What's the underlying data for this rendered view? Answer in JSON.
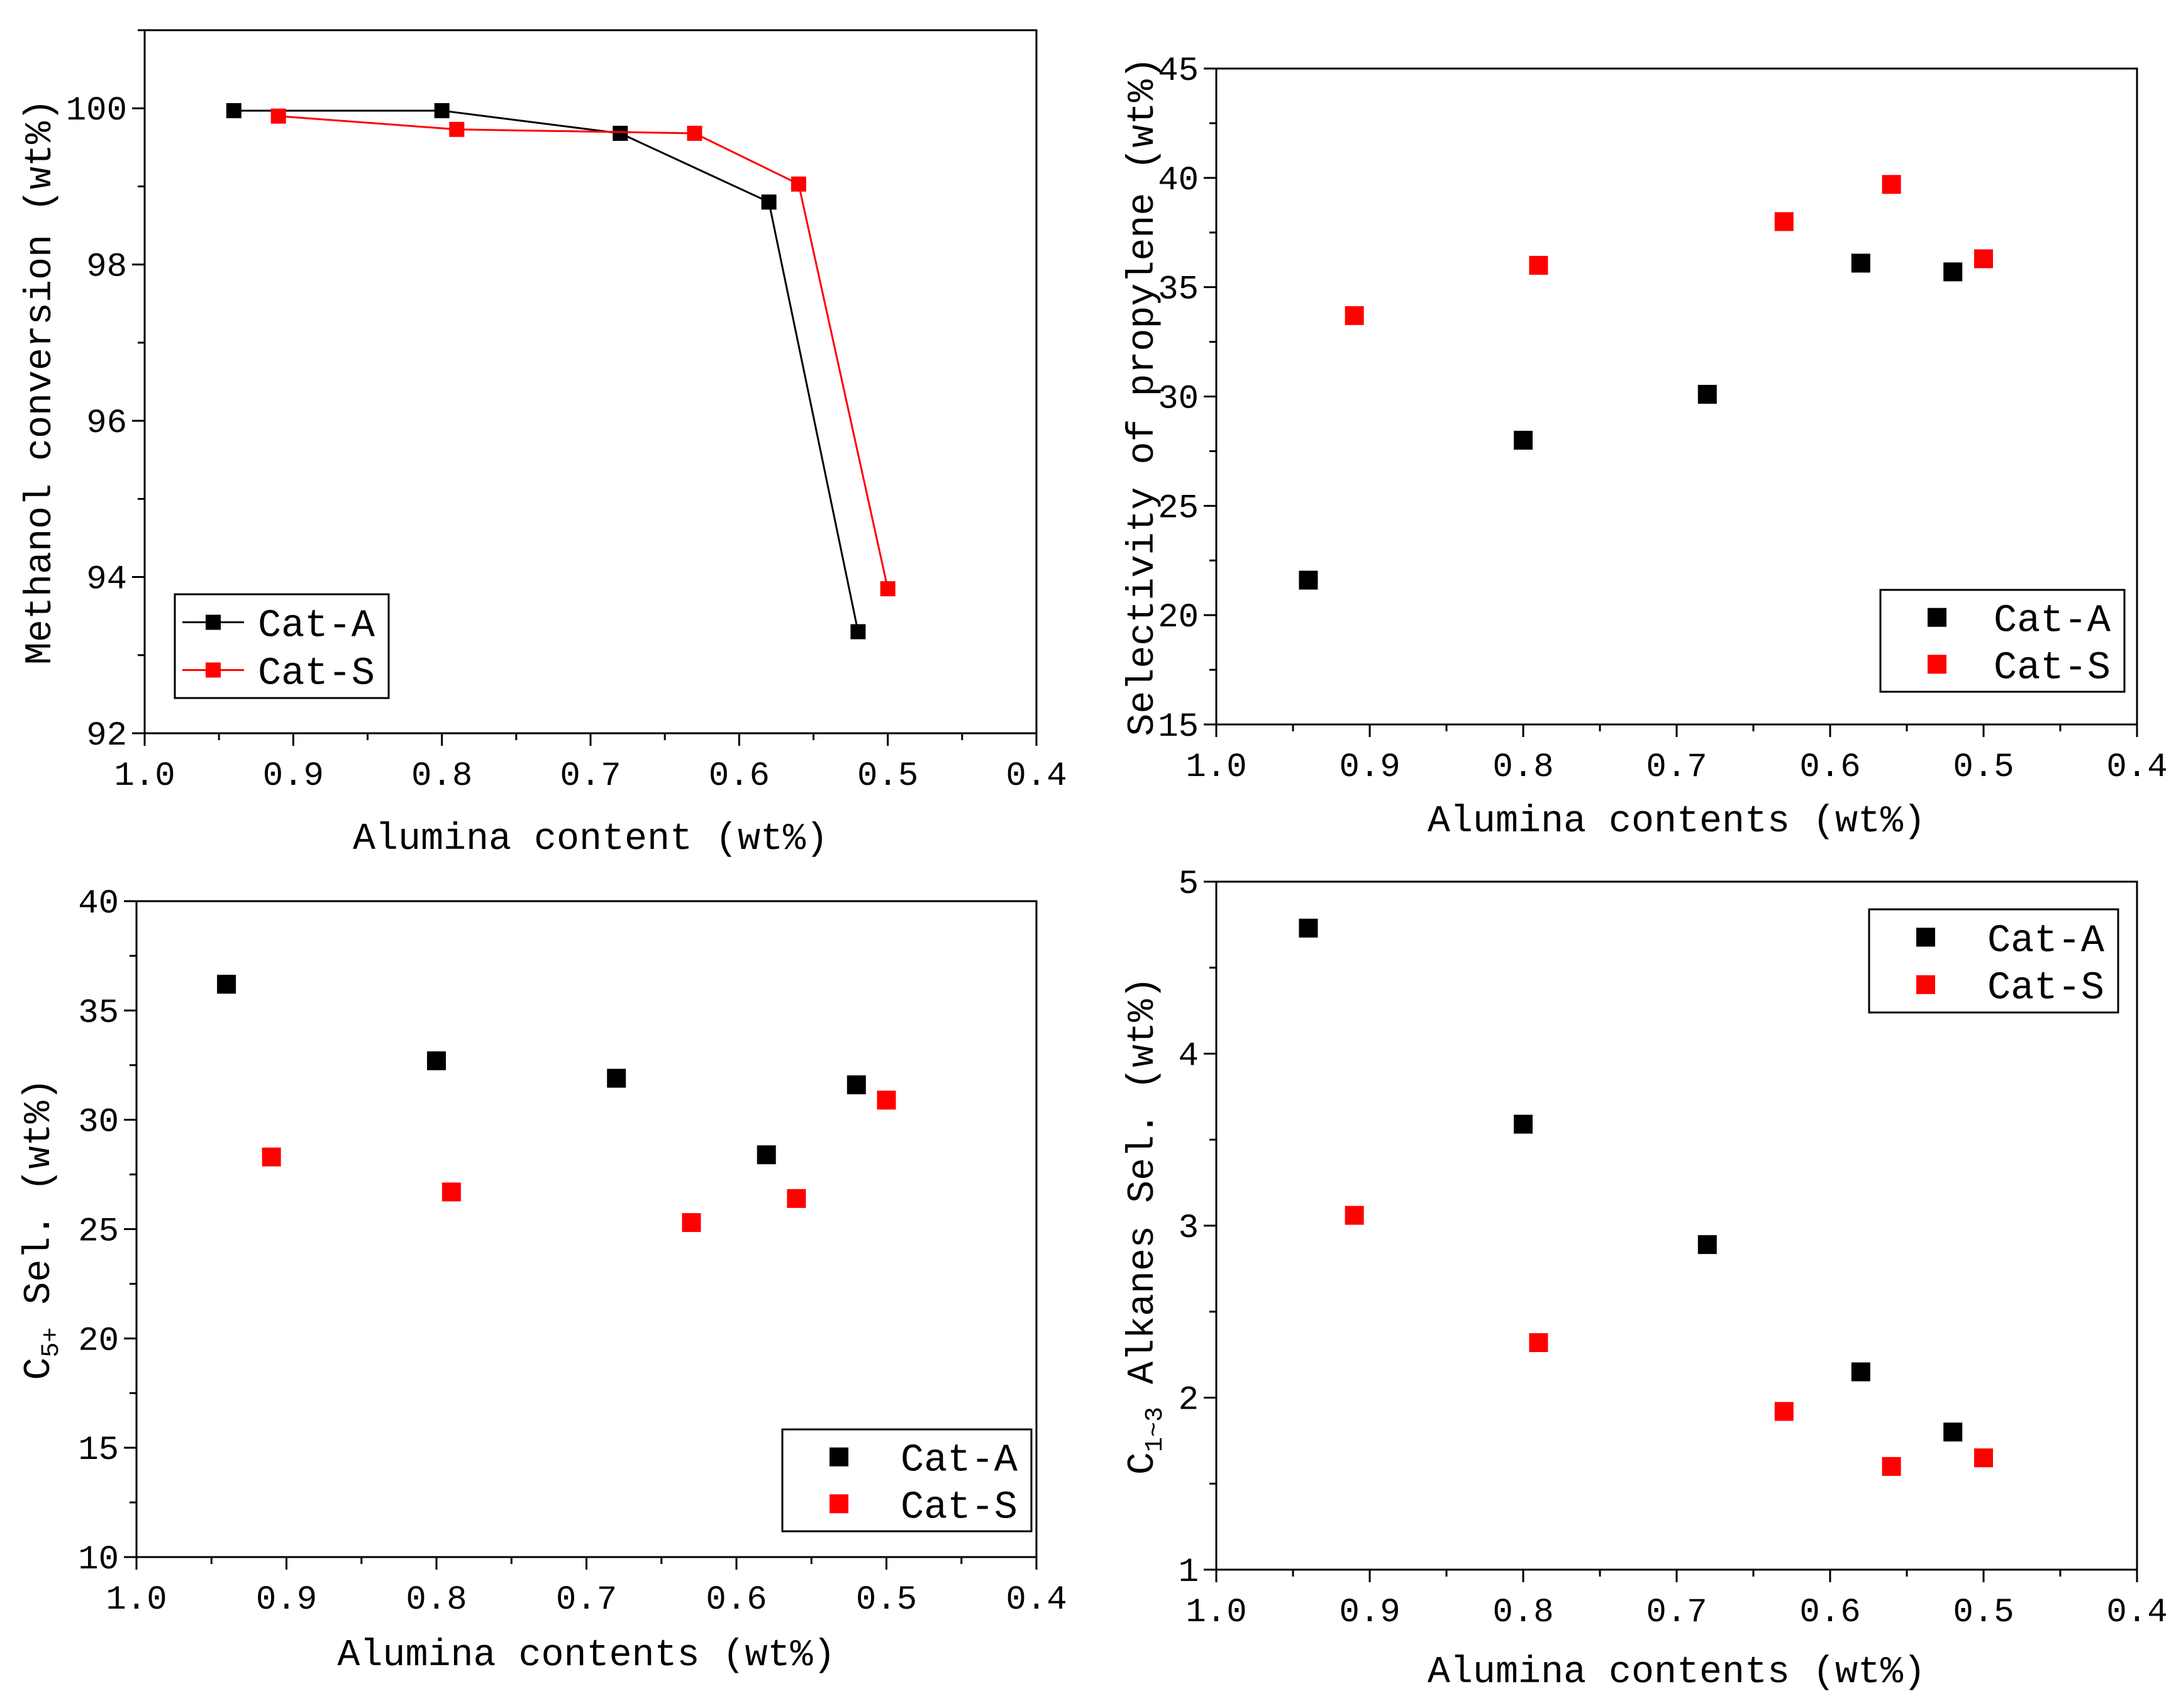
{
  "colors": {
    "cat_a": "#000000",
    "cat_s": "#ff0000"
  },
  "chart_data": [
    {
      "id": "conversion",
      "type": "line",
      "xlabel": "Alumina content (wt%)",
      "ylabel": "Methanol conversion (wt%)",
      "xlim": [
        1.0,
        0.4
      ],
      "ylim": [
        92,
        101
      ],
      "xticks": [
        1.0,
        0.9,
        0.8,
        0.7,
        0.6,
        0.5,
        0.4
      ],
      "xtick_labels": [
        "1.0",
        "0.9",
        "0.8",
        "0.7",
        "0.6",
        "0.5",
        "0.4"
      ],
      "yticks": [
        92,
        94,
        96,
        98,
        100
      ],
      "ytick_labels": [
        "92",
        "94",
        "96",
        "98",
        "100"
      ],
      "legend": "bottom-left",
      "series": [
        {
          "name": "Cat-A",
          "color": "#000000",
          "x": [
            0.94,
            0.8,
            0.68,
            0.58,
            0.52
          ],
          "y": [
            99.97,
            99.97,
            99.68,
            98.8,
            93.3
          ]
        },
        {
          "name": "Cat-S",
          "color": "#ff0000",
          "x": [
            0.91,
            0.79,
            0.63,
            0.56,
            0.5
          ],
          "y": [
            99.9,
            99.73,
            99.68,
            99.03,
            93.85
          ]
        }
      ]
    },
    {
      "id": "propylene",
      "type": "scatter",
      "xlabel": "Alumina contents (wt%)",
      "ylabel": "Selectivity of propylene (wt%)",
      "xlim": [
        1.0,
        0.4
      ],
      "ylim": [
        15,
        45
      ],
      "xticks": [
        1.0,
        0.9,
        0.8,
        0.7,
        0.6,
        0.5,
        0.4
      ],
      "xtick_labels": [
        "1.0",
        "0.9",
        "0.8",
        "0.7",
        "0.6",
        "0.5",
        "0.4"
      ],
      "yticks": [
        15,
        20,
        25,
        30,
        35,
        40,
        45
      ],
      "ytick_labels": [
        "15",
        "20",
        "25",
        "30",
        "35",
        "40",
        "45"
      ],
      "legend": "bottom-right",
      "series": [
        {
          "name": "Cat-A",
          "color": "#000000",
          "x": [
            0.94,
            0.8,
            0.68,
            0.58,
            0.52
          ],
          "y": [
            21.6,
            28.0,
            30.1,
            36.1,
            35.7
          ]
        },
        {
          "name": "Cat-S",
          "color": "#ff0000",
          "x": [
            0.91,
            0.79,
            0.63,
            0.56,
            0.5
          ],
          "y": [
            33.7,
            36.0,
            38.0,
            39.7,
            36.3
          ]
        }
      ]
    },
    {
      "id": "c5plus",
      "type": "scatter",
      "xlabel": "Alumina contents (wt%)",
      "ylabel": "C5+ Sel. (wt%)",
      "ylabel_main": "C",
      "ylabel_sub": "5+",
      "ylabel_rest": " Sel. (wt%)",
      "xlim": [
        1.0,
        0.4
      ],
      "ylim": [
        10,
        40
      ],
      "xticks": [
        1.0,
        0.9,
        0.8,
        0.7,
        0.6,
        0.5,
        0.4
      ],
      "xtick_labels": [
        "1.0",
        "0.9",
        "0.8",
        "0.7",
        "0.6",
        "0.5",
        "0.4"
      ],
      "yticks": [
        10,
        15,
        20,
        25,
        30,
        35,
        40
      ],
      "ytick_labels": [
        "10",
        "15",
        "20",
        "25",
        "30",
        "35",
        "40"
      ],
      "legend": "bottom-right",
      "series": [
        {
          "name": "Cat-A",
          "color": "#000000",
          "x": [
            0.94,
            0.8,
            0.68,
            0.58,
            0.52
          ],
          "y": [
            36.2,
            32.7,
            31.9,
            28.4,
            31.6
          ]
        },
        {
          "name": "Cat-S",
          "color": "#ff0000",
          "x": [
            0.91,
            0.79,
            0.63,
            0.56,
            0.5
          ],
          "y": [
            28.3,
            26.7,
            25.3,
            26.4,
            30.9
          ]
        }
      ]
    },
    {
      "id": "alkanes",
      "type": "scatter",
      "xlabel": "Alumina contents (wt%)",
      "ylabel": "C1~3 Alkanes Sel. (wt%)",
      "ylabel_main": "C",
      "ylabel_sub": "1~3",
      "ylabel_rest": " Alkanes Sel. (wt%)",
      "xlim": [
        1.0,
        0.4
      ],
      "ylim": [
        1,
        5
      ],
      "xticks": [
        1.0,
        0.9,
        0.8,
        0.7,
        0.6,
        0.5,
        0.4
      ],
      "xtick_labels": [
        "1.0",
        "0.9",
        "0.8",
        "0.7",
        "0.6",
        "0.5",
        "0.4"
      ],
      "yticks": [
        1,
        2,
        3,
        4,
        5
      ],
      "ytick_labels": [
        "1",
        "2",
        "3",
        "4",
        "5"
      ],
      "legend": "top-right",
      "series": [
        {
          "name": "Cat-A",
          "color": "#000000",
          "x": [
            0.94,
            0.8,
            0.68,
            0.58,
            0.52
          ],
          "y": [
            4.73,
            3.59,
            2.89,
            2.15,
            1.8
          ]
        },
        {
          "name": "Cat-S",
          "color": "#ff0000",
          "x": [
            0.91,
            0.79,
            0.63,
            0.56,
            0.5
          ],
          "y": [
            3.06,
            2.32,
            1.92,
            1.6,
            1.65
          ]
        }
      ]
    }
  ]
}
